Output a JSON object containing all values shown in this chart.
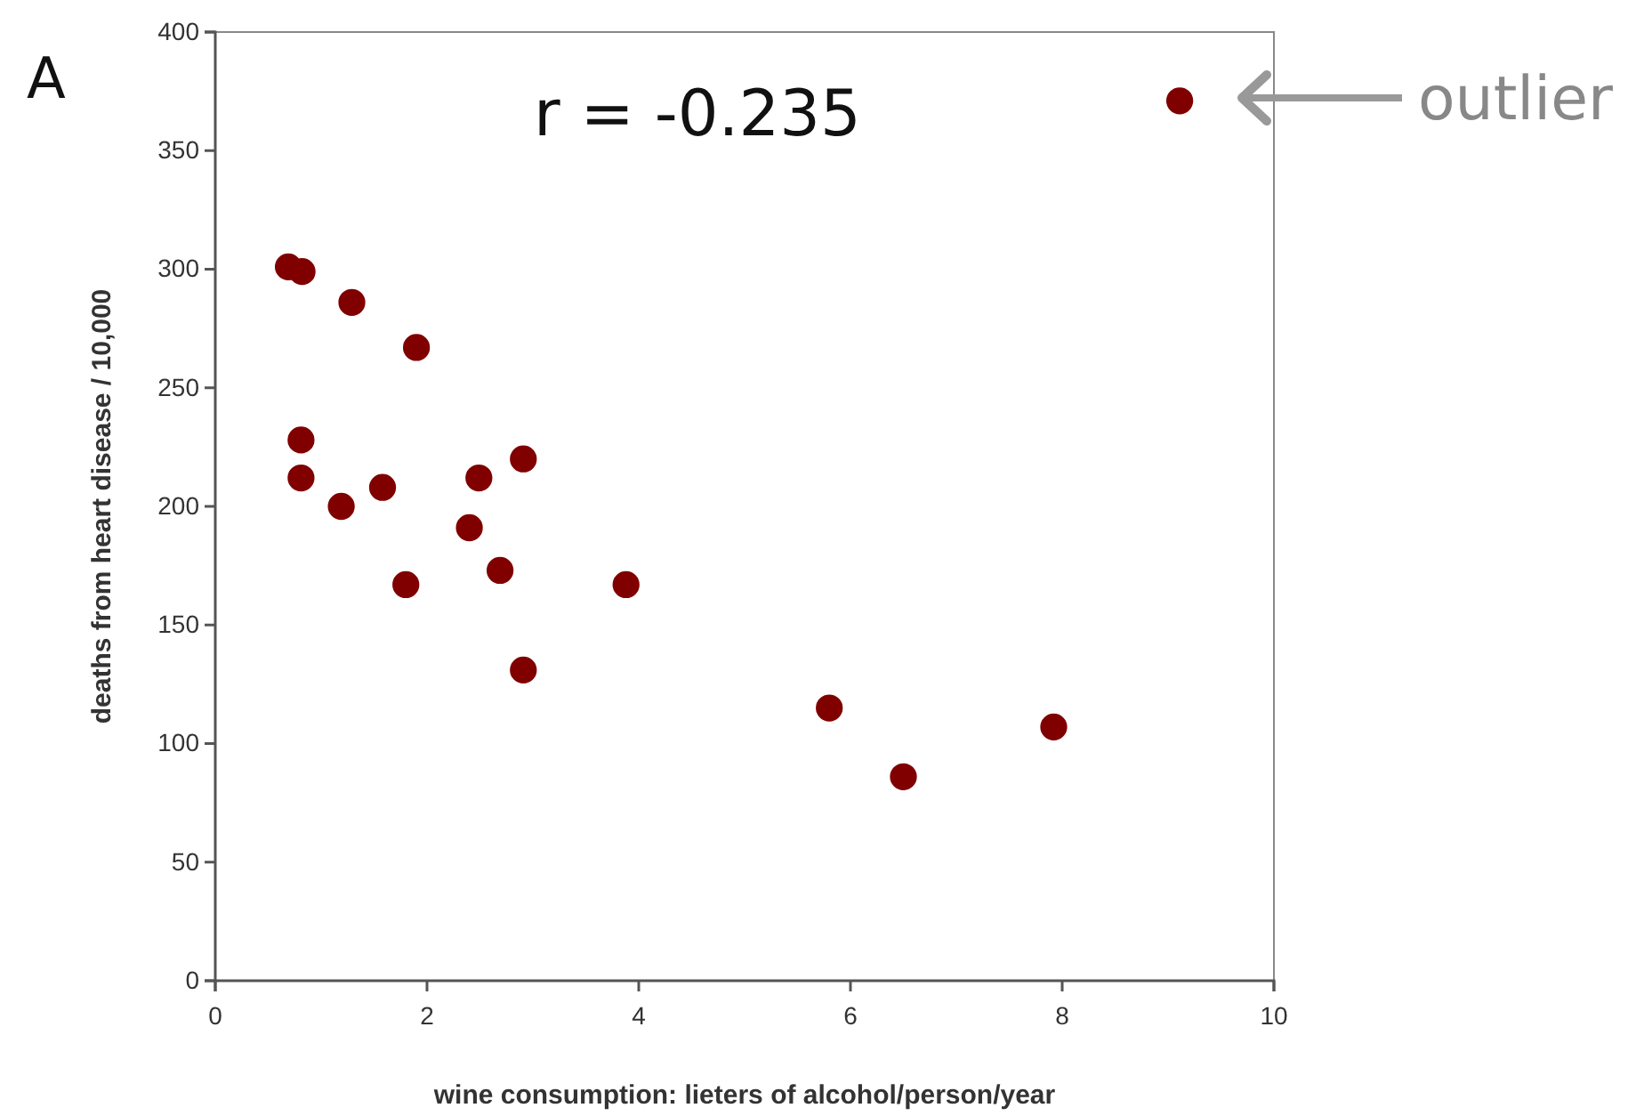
{
  "chart_data": {
    "type": "scatter",
    "xlabel": "wine consumption: lieters of alcohol/person/year",
    "ylabel": "deaths from heart disease / 10,000",
    "x": [
      0.69,
      0.82,
      1.29,
      1.9,
      0.81,
      0.81,
      1.19,
      1.58,
      1.8,
      2.4,
      2.49,
      2.69,
      2.91,
      2.91,
      3.88,
      5.8,
      6.5,
      7.92,
      9.11
    ],
    "series": [
      {
        "color": "#800000",
        "values": [
          301,
          299,
          286,
          267,
          228,
          212,
          200,
          208,
          167,
          191,
          212,
          173,
          220,
          131,
          167,
          115,
          86,
          107,
          371
        ]
      }
    ],
    "xlim": [
      0,
      10
    ],
    "xticks": [
      0,
      2,
      4,
      6,
      8,
      10
    ],
    "ylim": [
      0,
      400
    ],
    "yticks": [
      0,
      50,
      100,
      150,
      200,
      250,
      300,
      350,
      400
    ],
    "grid": false,
    "marker": "circle",
    "annotations": [
      "A",
      "r = -0.235",
      "outlier"
    ]
  }
}
